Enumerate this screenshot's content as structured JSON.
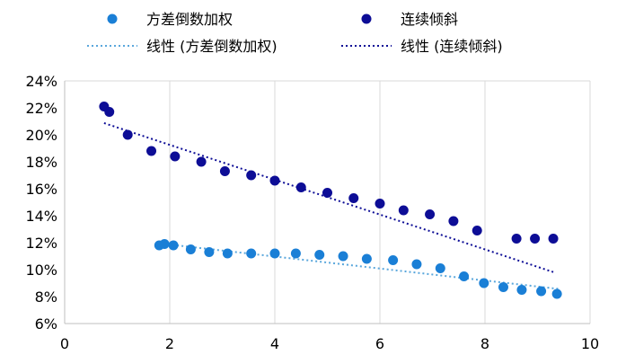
{
  "chart_data": {
    "type": "scatter",
    "title": "",
    "xlabel": "",
    "ylabel": "",
    "xlim": [
      0,
      10
    ],
    "ylim": [
      0.06,
      0.24
    ],
    "x_ticks": [
      "0",
      "2",
      "4",
      "6",
      "8",
      "10"
    ],
    "y_ticks": [
      "6%",
      "8%",
      "10%",
      "12%",
      "14%",
      "16%",
      "18%",
      "20%",
      "22%",
      "24%"
    ],
    "grid": "vertical gridlines at x ticks",
    "legend": "top, two columns",
    "series": [
      {
        "name": "方差倒数加权",
        "color": "#1a7fd6",
        "points": [
          [
            1.8,
            0.118
          ],
          [
            1.9,
            0.119
          ],
          [
            2.07,
            0.118
          ],
          [
            2.4,
            0.115
          ],
          [
            2.75,
            0.113
          ],
          [
            3.1,
            0.112
          ],
          [
            3.55,
            0.112
          ],
          [
            4.0,
            0.112
          ],
          [
            4.4,
            0.112
          ],
          [
            4.85,
            0.111
          ],
          [
            5.3,
            0.11
          ],
          [
            5.75,
            0.108
          ],
          [
            6.25,
            0.107
          ],
          [
            6.7,
            0.104
          ],
          [
            7.15,
            0.101
          ],
          [
            7.6,
            0.095
          ],
          [
            7.98,
            0.09
          ],
          [
            8.35,
            0.087
          ],
          [
            8.7,
            0.085
          ],
          [
            9.07,
            0.084
          ],
          [
            9.37,
            0.082
          ]
        ]
      },
      {
        "name": "连续倾斜",
        "color": "#0d0d96",
        "points": [
          [
            0.75,
            0.221
          ],
          [
            0.85,
            0.217
          ],
          [
            1.2,
            0.2
          ],
          [
            1.65,
            0.188
          ],
          [
            2.1,
            0.184
          ],
          [
            2.6,
            0.18
          ],
          [
            3.05,
            0.173
          ],
          [
            3.55,
            0.17
          ],
          [
            4.0,
            0.166
          ],
          [
            4.5,
            0.161
          ],
          [
            5.0,
            0.157
          ],
          [
            5.5,
            0.153
          ],
          [
            6.0,
            0.149
          ],
          [
            6.45,
            0.144
          ],
          [
            6.95,
            0.141
          ],
          [
            7.4,
            0.136
          ],
          [
            7.85,
            0.129
          ],
          [
            8.6,
            0.123
          ],
          [
            8.95,
            0.123
          ],
          [
            9.3,
            0.123
          ]
        ]
      }
    ],
    "trendlines": [
      {
        "name": "线性 (方差倒数加权)",
        "color": "#5aa7dc",
        "style": "dotted",
        "x": [
          1.8,
          9.4
        ],
        "y": [
          0.1195,
          0.0857
        ]
      },
      {
        "name": "线性 (连续倾斜)",
        "color": "#0d0d96",
        "style": "dotted",
        "x": [
          0.75,
          9.3
        ],
        "y": [
          0.2087,
          0.0982
        ]
      }
    ]
  }
}
